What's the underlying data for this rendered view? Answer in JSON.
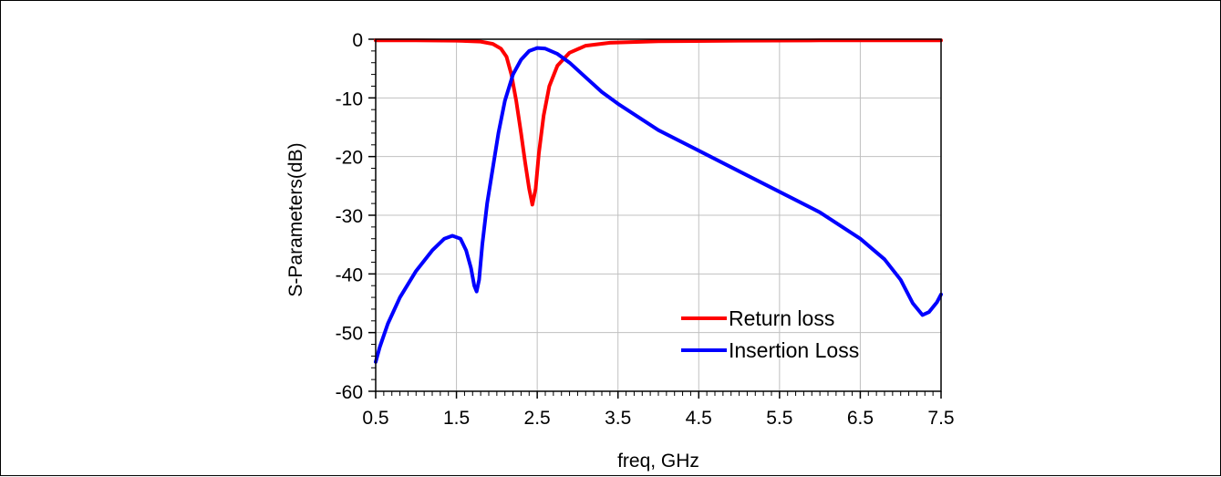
{
  "chart_data": {
    "type": "line",
    "title": "",
    "xlabel": "freq, GHz",
    "ylabel": "S-Parameters(dB)",
    "xlim": [
      0.5,
      7.5
    ],
    "ylim": [
      -60,
      0
    ],
    "x_ticks": [
      "0.5",
      "1.5",
      "2.5",
      "3.5",
      "4.5",
      "5.5",
      "6.5",
      "7.5"
    ],
    "y_ticks": [
      "0",
      "-10",
      "-20",
      "-30",
      "-40",
      "-50",
      "-60"
    ],
    "grid": true,
    "legend_position": "bottom-right",
    "series": [
      {
        "name": "Return loss",
        "color": "#ff0000",
        "points": [
          [
            0.5,
            -0.2
          ],
          [
            1.0,
            -0.2
          ],
          [
            1.5,
            -0.25
          ],
          [
            1.8,
            -0.4
          ],
          [
            1.95,
            -0.8
          ],
          [
            2.05,
            -1.6
          ],
          [
            2.12,
            -3.0
          ],
          [
            2.18,
            -6.0
          ],
          [
            2.24,
            -10.5
          ],
          [
            2.3,
            -16.0
          ],
          [
            2.35,
            -21.0
          ],
          [
            2.4,
            -25.5
          ],
          [
            2.44,
            -28.2
          ],
          [
            2.48,
            -25.5
          ],
          [
            2.52,
            -19.5
          ],
          [
            2.58,
            -13.0
          ],
          [
            2.65,
            -8.0
          ],
          [
            2.75,
            -4.5
          ],
          [
            2.9,
            -2.3
          ],
          [
            3.1,
            -1.1
          ],
          [
            3.4,
            -0.6
          ],
          [
            4.0,
            -0.35
          ],
          [
            5.0,
            -0.25
          ],
          [
            6.0,
            -0.2
          ],
          [
            7.5,
            -0.2
          ]
        ]
      },
      {
        "name": "Insertion Loss",
        "color": "#0000ff",
        "points": [
          [
            0.5,
            -55.0
          ],
          [
            0.55,
            -52.5
          ],
          [
            0.65,
            -48.5
          ],
          [
            0.8,
            -44.0
          ],
          [
            1.0,
            -39.5
          ],
          [
            1.2,
            -36.0
          ],
          [
            1.35,
            -34.0
          ],
          [
            1.45,
            -33.5
          ],
          [
            1.55,
            -34.0
          ],
          [
            1.62,
            -36.0
          ],
          [
            1.68,
            -39.0
          ],
          [
            1.72,
            -42.0
          ],
          [
            1.75,
            -43.0
          ],
          [
            1.78,
            -41.0
          ],
          [
            1.82,
            -35.0
          ],
          [
            1.88,
            -28.0
          ],
          [
            1.95,
            -22.0
          ],
          [
            2.02,
            -16.0
          ],
          [
            2.1,
            -10.5
          ],
          [
            2.2,
            -6.0
          ],
          [
            2.3,
            -3.5
          ],
          [
            2.4,
            -2.0
          ],
          [
            2.5,
            -1.5
          ],
          [
            2.6,
            -1.6
          ],
          [
            2.75,
            -2.5
          ],
          [
            2.9,
            -4.0
          ],
          [
            3.1,
            -6.5
          ],
          [
            3.3,
            -9.0
          ],
          [
            3.5,
            -11.0
          ],
          [
            4.0,
            -15.5
          ],
          [
            4.5,
            -19.0
          ],
          [
            5.0,
            -22.5
          ],
          [
            5.5,
            -26.0
          ],
          [
            6.0,
            -29.5
          ],
          [
            6.5,
            -34.0
          ],
          [
            6.8,
            -37.5
          ],
          [
            7.0,
            -41.0
          ],
          [
            7.15,
            -45.0
          ],
          [
            7.27,
            -47.0
          ],
          [
            7.35,
            -46.5
          ],
          [
            7.45,
            -44.8
          ],
          [
            7.5,
            -43.5
          ]
        ]
      }
    ]
  }
}
